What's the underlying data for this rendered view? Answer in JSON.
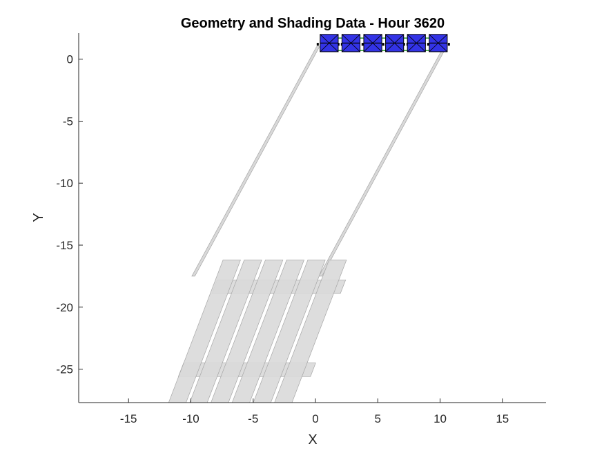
{
  "chart_data": {
    "type": "scatter",
    "title": "Geometry and Shading Data - Hour 3620",
    "xlabel": "X",
    "ylabel": "Y",
    "xlim": [
      -19,
      18.5
    ],
    "ylim": [
      -27.7,
      2.1
    ],
    "xticks": [
      -15,
      -10,
      -5,
      0,
      5,
      10,
      15
    ],
    "yticks": [
      0,
      -5,
      -10,
      -15,
      -20,
      -25
    ],
    "grid": false,
    "legend": "none",
    "colors": {
      "module_fill": "#3333e6",
      "module_edge": "#000000",
      "shadow_fill": "#d9d9d9",
      "shadow_edge": "#a6a6a6",
      "rack_line": "#2a9a2a"
    },
    "modules": {
      "centers_x": [
        1.1,
        2.85,
        4.6,
        6.35,
        8.1,
        9.85
      ],
      "width": 1.45,
      "y_bottom": 0.6,
      "y_top": 2.0
    },
    "rack": {
      "x_start": 0.1,
      "x_end": 10.8,
      "y": 1.2
    },
    "shadow_offset": [
      -10.0,
      -18.5
    ],
    "shadow_poles": {
      "x": [
        0.2,
        10.4
      ],
      "y_base": 1.0,
      "half_width": 0.12
    },
    "shadow_modules": {
      "centers_x": [
        -8.9,
        -7.2,
        -5.5,
        -3.8,
        -2.1,
        -0.4
      ],
      "width": 1.4,
      "y_bottom": -27.7,
      "y_top": -16.2,
      "slope": 0.38
    },
    "shadow_rails": [
      {
        "y_bottom": -18.9,
        "y_top": -17.8,
        "x_left": -8.3,
        "x_right": 2.0
      },
      {
        "y_bottom": -25.6,
        "y_top": -24.5,
        "x_left": -11.0,
        "x_right": -0.4
      }
    ]
  }
}
